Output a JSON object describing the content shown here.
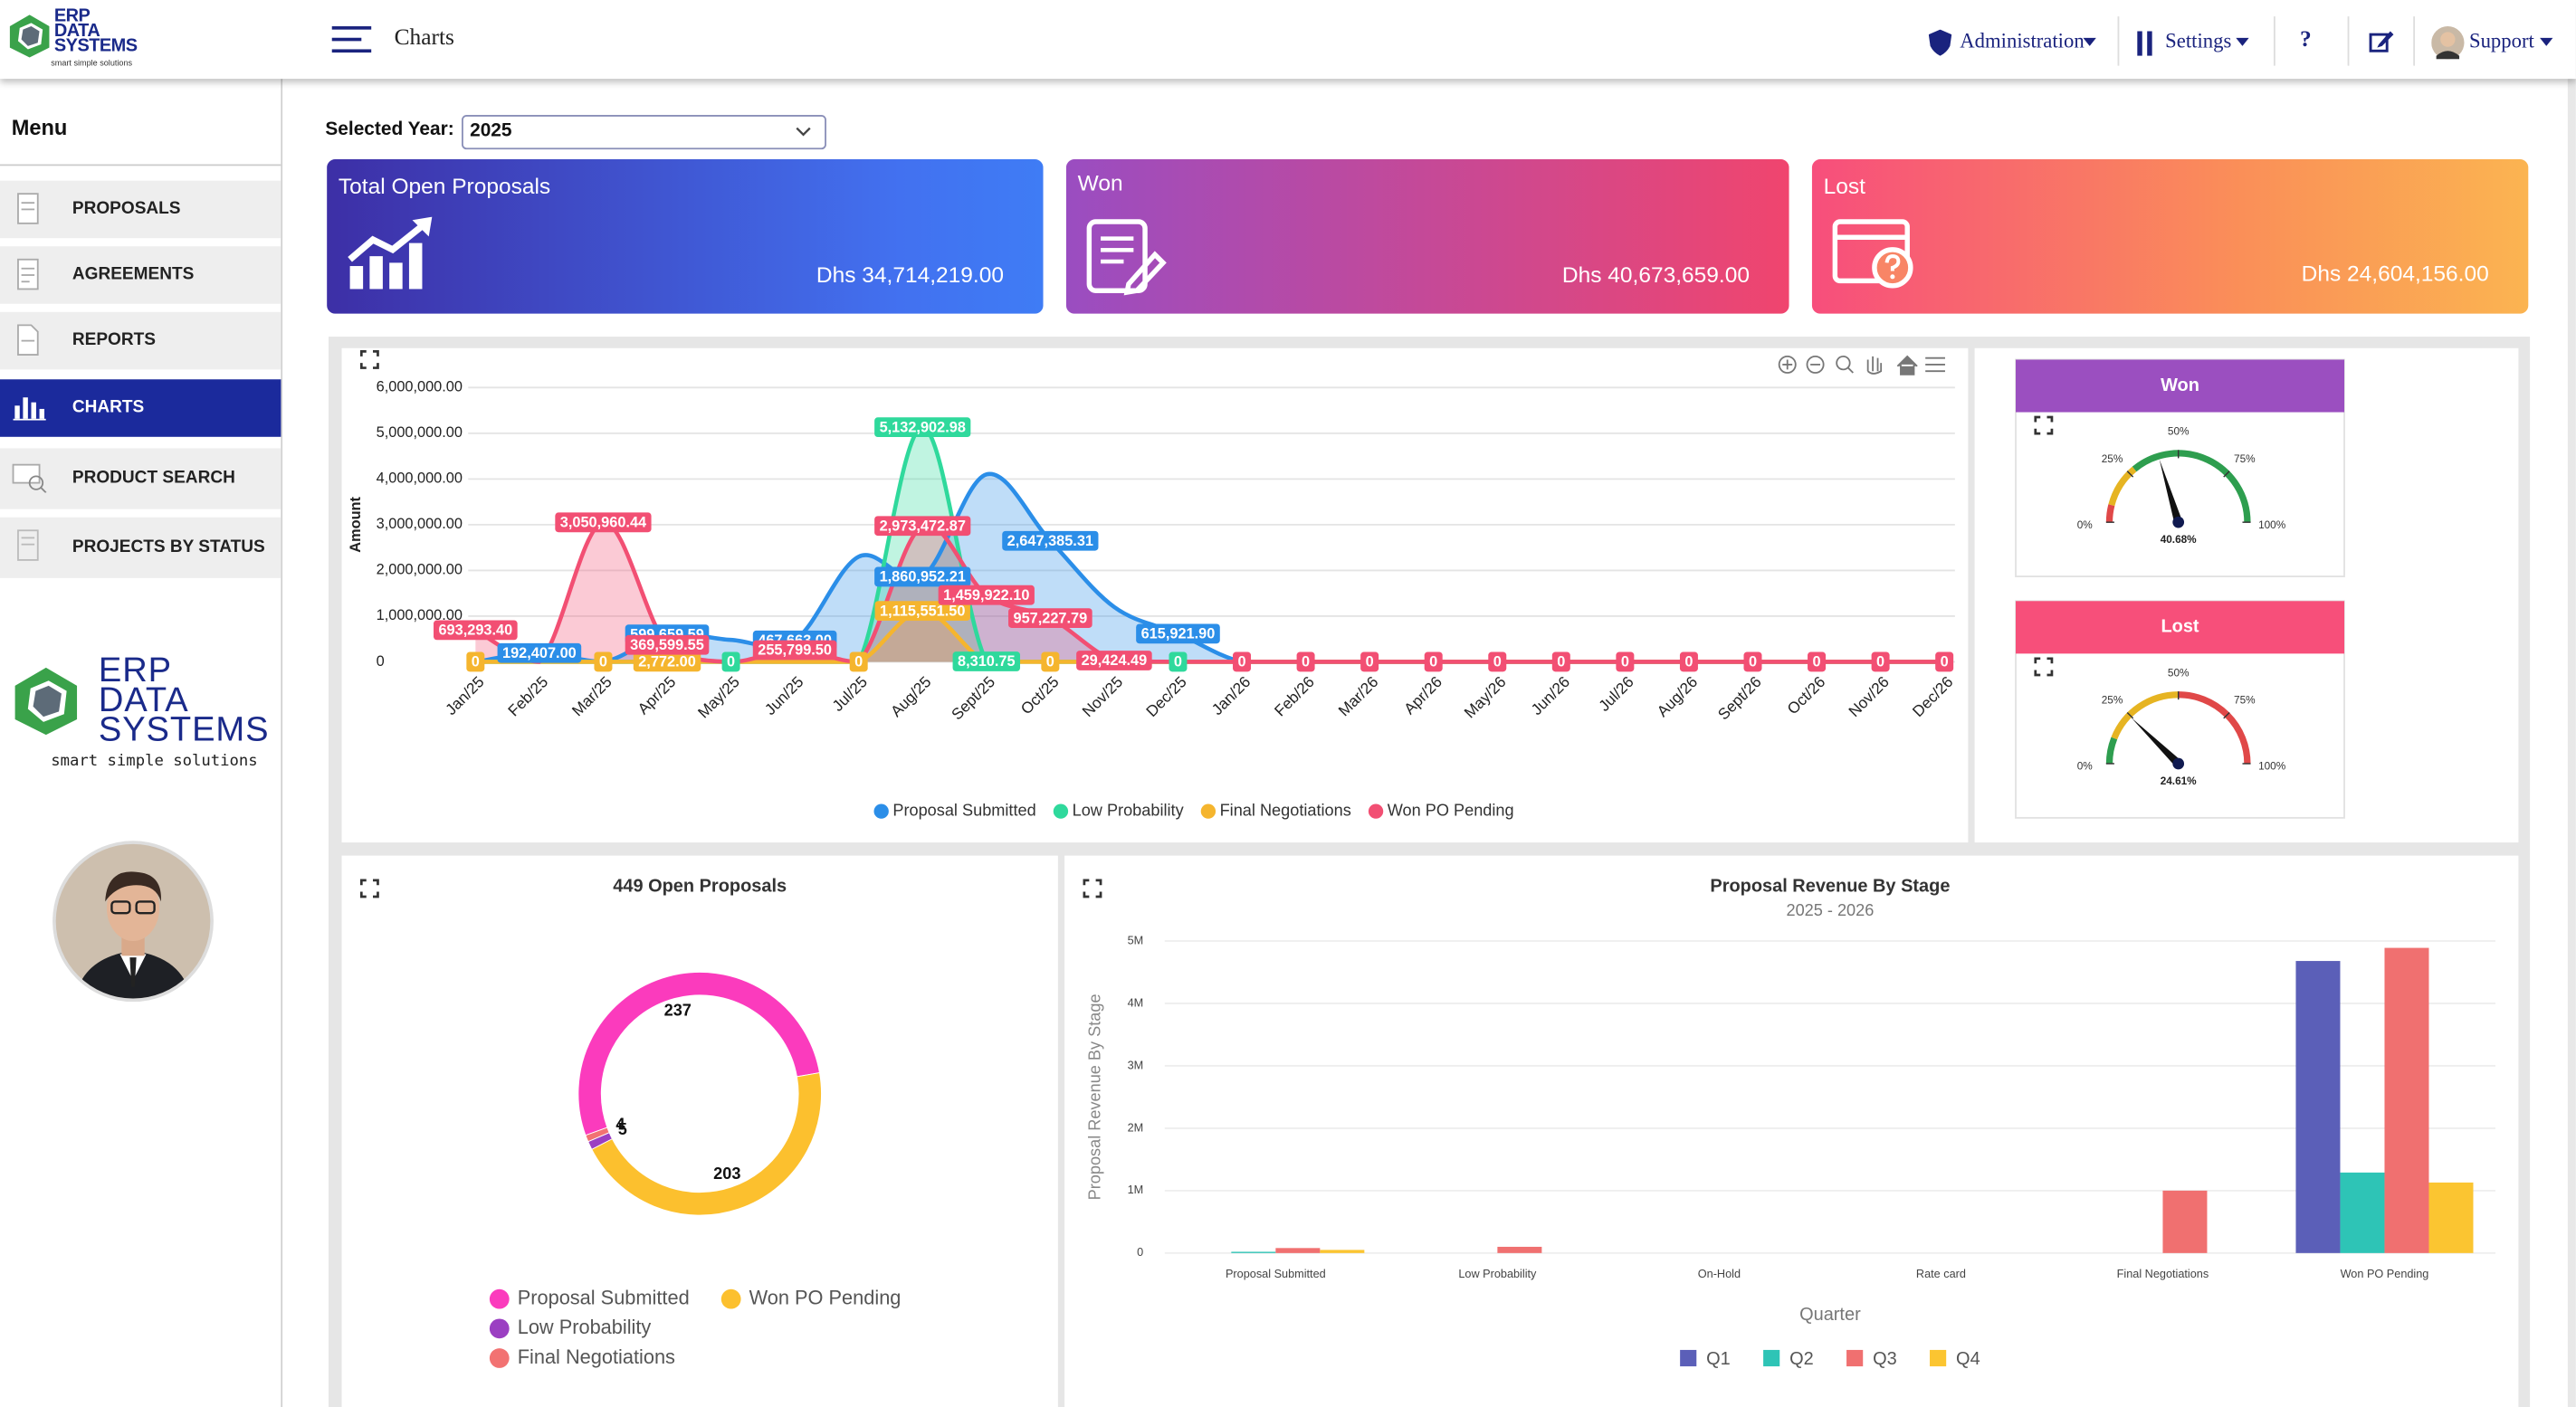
{
  "logo": {
    "name": [
      "ERP",
      "DATA",
      "SYSTEMS"
    ],
    "tagline": "smart simple solutions"
  },
  "header": {
    "title": "Charts",
    "nav": [
      "Administration",
      "Settings",
      "?",
      "Support"
    ]
  },
  "sidebar": {
    "title": "Menu",
    "items": [
      "PROPOSALS",
      "AGREEMENTS",
      "REPORTS",
      "CHARTS",
      "PRODUCT SEARCH",
      "PROJECTS BY STATUS"
    ]
  },
  "filter": {
    "label": "Selected Year:",
    "value": "2025"
  },
  "cards": [
    {
      "title": "Total Open Proposals",
      "amount": "Dhs 34,714,219.00"
    },
    {
      "title": "Won",
      "amount": "Dhs 40,673,659.00"
    },
    {
      "title": "Lost",
      "amount": "Dhs 24,604,156.00"
    }
  ],
  "chart_data": [
    {
      "type": "area",
      "y_label": "Amount",
      "categories": [
        "Jan/25",
        "Feb/25",
        "Mar/25",
        "Apr/25",
        "May/25",
        "Jun/25",
        "Jul/25",
        "Aug/25",
        "Sept/25",
        "Oct/25",
        "Nov/25",
        "Dec/25",
        "Jan/26",
        "Feb/26",
        "Mar/26",
        "Apr/26",
        "May/26",
        "Jun/26",
        "Jul/26",
        "Aug/26",
        "Sept/26",
        "Oct/26",
        "Nov/26",
        "Dec/26"
      ],
      "ylim": [
        0,
        6000000
      ],
      "yticks": [
        0,
        {
          "value": 1000000,
          "label": "1,000,000.00"
        },
        {
          "value": 2000000,
          "label": "2,000,000.00"
        },
        {
          "value": 3000000,
          "label": "3,000,000.00"
        },
        {
          "value": 4000000,
          "label": "4,000,000.00"
        },
        {
          "value": 5000000,
          "label": "5,000,000.00"
        },
        {
          "value": 6000000,
          "label": "6,000,000.00"
        }
      ],
      "grid": true,
      "legend": "bottom",
      "series": [
        {
          "name": "Proposal Submitted",
          "color": "#2b8ee8",
          "values": [
            0,
            192407,
            0,
            599659.59,
            480000,
            467663,
            2300000,
            1860952.21,
            4100000,
            2647385.31,
            1200000,
            615921.9,
            0,
            0,
            0,
            0,
            0,
            0,
            0,
            0,
            0,
            0,
            0,
            0
          ],
          "value_labels": [
            null,
            "192,407.00",
            null,
            "599,659.59",
            null,
            "467,663.00",
            null,
            "1,860,952.21",
            null,
            "2,647,385.31",
            null,
            "615,921.90",
            null,
            null,
            null,
            null,
            null,
            null,
            null,
            null,
            null,
            null,
            null,
            null
          ]
        },
        {
          "name": "Low Probability",
          "color": "#2fd99c",
          "values": [
            0,
            0,
            0,
            0,
            0,
            0,
            0,
            5132902.98,
            8310.75,
            0,
            0,
            0,
            0,
            0,
            0,
            0,
            0,
            0,
            0,
            0,
            0,
            0,
            0,
            0
          ],
          "value_labels": [
            null,
            null,
            null,
            null,
            "0",
            null,
            null,
            "5,132,902.98",
            "8,310.75",
            null,
            null,
            "0",
            null,
            null,
            null,
            null,
            null,
            null,
            null,
            null,
            null,
            null,
            null,
            null
          ]
        },
        {
          "name": "Final Negotiations",
          "color": "#f5b52e",
          "values": [
            0,
            0,
            0,
            2772,
            0,
            0,
            0,
            1115551.5,
            0,
            0,
            0,
            0,
            0,
            0,
            0,
            0,
            0,
            0,
            0,
            0,
            0,
            0,
            0,
            0
          ],
          "value_labels": [
            "0",
            null,
            "0",
            "2,772.00",
            null,
            null,
            "0",
            "1,115,551.50",
            null,
            "0",
            null,
            null,
            null,
            null,
            null,
            null,
            null,
            null,
            null,
            null,
            null,
            null,
            null,
            null
          ]
        },
        {
          "name": "Won PO Pending",
          "color": "#f24f73",
          "values": [
            693293.4,
            0,
            3050960.44,
            369599.55,
            0,
            255799.5,
            0,
            2973472.87,
            1459922.1,
            957227.79,
            29424.49,
            0,
            0,
            0,
            0,
            0,
            0,
            0,
            0,
            0,
            0,
            0,
            0,
            0
          ],
          "value_labels": [
            "693,293.40",
            null,
            "3,050,960.44",
            "369,599.55",
            null,
            "255,799.50",
            null,
            "2,973,472.87",
            "1,459,922.10",
            "957,227.79",
            "29,424.49",
            null,
            "0",
            "0",
            "0",
            "0",
            "0",
            "0",
            "0",
            "0",
            "0",
            "0",
            "0",
            "0"
          ]
        }
      ]
    },
    {
      "type": "gauge",
      "title": "Won",
      "header_color": "#9b4fc0",
      "value": 40.68,
      "value_label": "40.68%",
      "ylim": [
        0,
        100
      ],
      "yticks": [
        {
          "value": 0,
          "label": "0%"
        },
        {
          "value": 25,
          "label": "25%"
        },
        {
          "value": 50,
          "label": "50%"
        },
        {
          "value": 75,
          "label": "75%"
        },
        {
          "value": 100,
          "label": "100%"
        }
      ],
      "bands": [
        {
          "from": 0,
          "to": 8,
          "color": "#e04848"
        },
        {
          "from": 8,
          "to": 28,
          "color": "#e6b422"
        },
        {
          "from": 28,
          "to": 100,
          "color": "#2e9e4f"
        }
      ]
    },
    {
      "type": "gauge",
      "title": "Lost",
      "header_color": "#f74f7a",
      "value": 24.61,
      "value_label": "24.61%",
      "ylim": [
        0,
        100
      ],
      "yticks": [
        {
          "value": 0,
          "label": "0%"
        },
        {
          "value": 25,
          "label": "25%"
        },
        {
          "value": 50,
          "label": "50%"
        },
        {
          "value": 75,
          "label": "75%"
        },
        {
          "value": 100,
          "label": "100%"
        }
      ],
      "bands": [
        {
          "from": 0,
          "to": 12,
          "color": "#2e9e4f"
        },
        {
          "from": 12,
          "to": 50,
          "color": "#e6b422"
        },
        {
          "from": 50,
          "to": 100,
          "color": "#e04848"
        }
      ]
    },
    {
      "type": "donut",
      "title": "449 Open Proposals",
      "categories": [
        "Proposal Submitted",
        "Won PO Pending",
        "Low Probability",
        "Final Negotiations"
      ],
      "values": [
        237,
        203,
        5,
        4
      ],
      "colors": [
        "#fb3bbd",
        "#fcc02e",
        "#9b3fc2",
        "#f27272"
      ]
    },
    {
      "type": "bar",
      "title": "Proposal Revenue By Stage",
      "subtitle": "2025 - 2026",
      "x_label": "Quarter",
      "y_label": "Proposal Revenue By Stage",
      "categories": [
        "Proposal Submitted",
        "Low Probability",
        "On-Hold",
        "Rate card",
        "Final Negotiations",
        "Won PO Pending"
      ],
      "ylim": [
        0,
        5000000
      ],
      "yticks": [
        0,
        {
          "value": 1000000,
          "label": "1M"
        },
        {
          "value": 2000000,
          "label": "2M"
        },
        {
          "value": 3000000,
          "label": "3M"
        },
        {
          "value": 4000000,
          "label": "4M"
        },
        {
          "value": 5000000,
          "label": "5M"
        }
      ],
      "grid": true,
      "series": [
        {
          "name": "Q1",
          "color": "#5b5fb8",
          "values": [
            0,
            0,
            0,
            0,
            0,
            4680000
          ]
        },
        {
          "name": "Q2",
          "color": "#2ec4b6",
          "values": [
            20000,
            0,
            0,
            0,
            0,
            1290000
          ]
        },
        {
          "name": "Q3",
          "color": "#f07070",
          "values": [
            80000,
            100000,
            0,
            0,
            1000000,
            4890000
          ]
        },
        {
          "name": "Q4",
          "color": "#fbc531",
          "values": [
            50000,
            0,
            0,
            0,
            0,
            1130000
          ]
        }
      ]
    }
  ]
}
